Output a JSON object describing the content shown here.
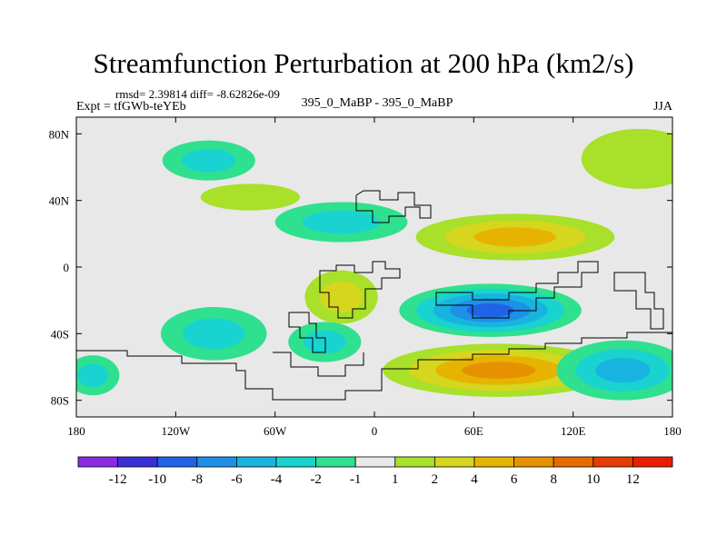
{
  "header": {
    "title": "Streamfunction Perturbation at 200 hPa (km2/s)",
    "stats": "rmsd= 2.39814 diff= -8.62826e-09",
    "expt": "Expt = tfGWb-teYEb",
    "center_label": "395_0_MaBP - 395_0_MaBP",
    "season": "JJA"
  },
  "chart_data": {
    "type": "heatmap",
    "title": "Streamfunction Perturbation at 200 hPa (km2/s)",
    "subtitle": "395_0_MaBP - 395_0_MaBP",
    "xlabel": "",
    "ylabel": "",
    "xlim": [
      -180,
      180
    ],
    "ylim": [
      -90,
      90
    ],
    "x_ticks": [
      {
        "value": -180,
        "label": "180"
      },
      {
        "value": -120,
        "label": "120W"
      },
      {
        "value": -60,
        "label": "60W"
      },
      {
        "value": 0,
        "label": "0"
      },
      {
        "value": 60,
        "label": "60E"
      },
      {
        "value": 120,
        "label": "120E"
      },
      {
        "value": 180,
        "label": "180"
      }
    ],
    "y_ticks": [
      {
        "value": 80,
        "label": "80N"
      },
      {
        "value": 40,
        "label": "40N"
      },
      {
        "value": 0,
        "label": "0"
      },
      {
        "value": -40,
        "label": "40S"
      },
      {
        "value": -80,
        "label": "80S"
      }
    ],
    "colorbar": {
      "colors": [
        "#8a2be2",
        "#3a2fd6",
        "#1f63e6",
        "#1e90e6",
        "#18b4e0",
        "#19d3d0",
        "#2fe08f",
        "#e8e8e8",
        "#a8e02a",
        "#d6d61e",
        "#e6b400",
        "#e69200",
        "#e66a00",
        "#e63c00",
        "#e61f00"
      ],
      "labels": [
        "-12",
        "-10",
        "-8",
        "-6",
        "-4",
        "-2",
        "-1",
        "1",
        "2",
        "4",
        "6",
        "8",
        "10",
        "12"
      ]
    },
    "regions": [
      {
        "lon": -100,
        "lat": 64,
        "rx": 28,
        "ry": 12,
        "level": -3,
        "sign": "negative"
      },
      {
        "lon": -75,
        "lat": 42,
        "rx": 30,
        "ry": 8,
        "level": 2,
        "sign": "positive"
      },
      {
        "lon": -20,
        "lat": 27,
        "rx": 40,
        "ry": 12,
        "level": -4,
        "sign": "negative"
      },
      {
        "lon": 85,
        "lat": 18,
        "rx": 60,
        "ry": 14,
        "level": 6,
        "sign": "positive"
      },
      {
        "lon": 160,
        "lat": 65,
        "rx": 35,
        "ry": 18,
        "level": 2,
        "sign": "positive"
      },
      {
        "lon": -20,
        "lat": -18,
        "rx": 22,
        "ry": 16,
        "level": 4,
        "sign": "positive"
      },
      {
        "lon": 70,
        "lat": -26,
        "rx": 55,
        "ry": 16,
        "level": -9,
        "sign": "negative"
      },
      {
        "lon": -97,
        "lat": -40,
        "rx": 32,
        "ry": 16,
        "level": -4,
        "sign": "negative"
      },
      {
        "lon": -30,
        "lat": -45,
        "rx": 22,
        "ry": 12,
        "level": -3,
        "sign": "negative"
      },
      {
        "lon": 75,
        "lat": -62,
        "rx": 70,
        "ry": 16,
        "level": 7,
        "sign": "positive"
      },
      {
        "lon": 150,
        "lat": -62,
        "rx": 40,
        "ry": 18,
        "level": -6,
        "sign": "negative"
      },
      {
        "lon": -170,
        "lat": -65,
        "rx": 16,
        "ry": 12,
        "level": -3,
        "sign": "negative"
      }
    ]
  }
}
